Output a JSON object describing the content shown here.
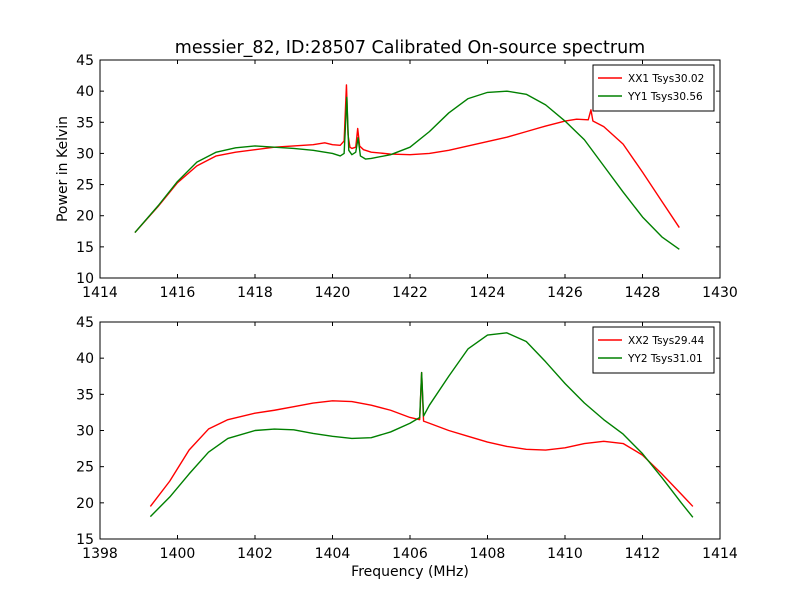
{
  "figure": {
    "title": "messier_82, ID:28507 Calibrated On-source spectrum",
    "ylabel": "Power in Kelvin",
    "xlabel": "Frequency (MHz)"
  },
  "colors": {
    "red": "#ff0000",
    "green": "#008000"
  },
  "chart_data": [
    {
      "type": "line",
      "xlim": [
        1414,
        1430
      ],
      "ylim": [
        10,
        45
      ],
      "xticks": [
        1414,
        1416,
        1418,
        1420,
        1422,
        1424,
        1426,
        1428,
        1430
      ],
      "yticks": [
        10,
        15,
        20,
        25,
        30,
        35,
        40,
        45
      ],
      "legend_placement": "top-right",
      "series": [
        {
          "name": "XX1 Tsys30.02",
          "color": "#ff0000",
          "x": [
            1414.9,
            1415.5,
            1416.0,
            1416.5,
            1417.0,
            1417.5,
            1418.0,
            1418.5,
            1419.0,
            1419.5,
            1419.8,
            1420.0,
            1420.2,
            1420.3,
            1420.36,
            1420.4,
            1420.45,
            1420.5,
            1420.6,
            1420.65,
            1420.7,
            1420.8,
            1421.0,
            1421.5,
            1422.0,
            1422.5,
            1423.0,
            1423.5,
            1424.0,
            1424.5,
            1425.0,
            1425.5,
            1426.0,
            1426.3,
            1426.6,
            1426.67,
            1426.72,
            1427.0,
            1427.5,
            1428.0,
            1428.5,
            1428.95
          ],
          "y": [
            17.3,
            21.5,
            25.3,
            28.0,
            29.6,
            30.2,
            30.6,
            31.0,
            31.2,
            31.4,
            31.7,
            31.4,
            31.3,
            32.0,
            41.0,
            33.0,
            31.0,
            30.8,
            31.0,
            34.0,
            31.2,
            30.6,
            30.2,
            29.9,
            29.8,
            30.0,
            30.5,
            31.2,
            31.9,
            32.6,
            33.5,
            34.4,
            35.2,
            35.5,
            35.4,
            37.0,
            35.2,
            34.3,
            31.5,
            27.0,
            22.3,
            18.1
          ]
        },
        {
          "name": "YY1 Tsys30.56",
          "color": "#008000",
          "x": [
            1414.9,
            1415.5,
            1416.0,
            1416.5,
            1417.0,
            1417.5,
            1418.0,
            1418.5,
            1419.0,
            1419.5,
            1420.0,
            1420.2,
            1420.3,
            1420.37,
            1420.42,
            1420.5,
            1420.6,
            1420.66,
            1420.72,
            1420.85,
            1421.0,
            1421.5,
            1422.0,
            1422.5,
            1423.0,
            1423.5,
            1424.0,
            1424.5,
            1425.0,
            1425.5,
            1426.0,
            1426.5,
            1427.0,
            1427.5,
            1428.0,
            1428.5,
            1428.95
          ],
          "y": [
            17.3,
            21.6,
            25.5,
            28.6,
            30.2,
            30.9,
            31.2,
            31.0,
            30.8,
            30.5,
            30.0,
            29.6,
            30.0,
            39.0,
            30.5,
            29.8,
            30.2,
            32.5,
            29.6,
            29.1,
            29.2,
            29.8,
            31.0,
            33.5,
            36.5,
            38.8,
            39.8,
            40.0,
            39.5,
            37.8,
            35.2,
            32.2,
            28.0,
            23.8,
            19.8,
            16.6,
            14.6
          ]
        }
      ]
    },
    {
      "type": "line",
      "xlim": [
        1398,
        1414
      ],
      "ylim": [
        15,
        45
      ],
      "xticks": [
        1398,
        1400,
        1402,
        1404,
        1406,
        1408,
        1410,
        1412,
        1414
      ],
      "yticks": [
        15,
        20,
        25,
        30,
        35,
        40,
        45
      ],
      "legend_placement": "top-right",
      "series": [
        {
          "name": "XX2 Tsys29.44",
          "color": "#ff0000",
          "x": [
            1399.3,
            1399.8,
            1400.3,
            1400.8,
            1401.3,
            1402.0,
            1402.5,
            1403.0,
            1403.5,
            1404.0,
            1404.5,
            1405.0,
            1405.5,
            1406.0,
            1406.25,
            1406.3,
            1406.35,
            1406.5,
            1407.0,
            1407.5,
            1408.0,
            1408.5,
            1409.0,
            1409.5,
            1410.0,
            1410.5,
            1411.0,
            1411.5,
            1412.0,
            1412.5,
            1413.0,
            1413.3
          ],
          "y": [
            19.5,
            23.0,
            27.3,
            30.2,
            31.5,
            32.4,
            32.8,
            33.3,
            33.8,
            34.1,
            34.0,
            33.5,
            32.8,
            31.8,
            31.5,
            38.0,
            31.3,
            31.0,
            30.0,
            29.2,
            28.4,
            27.8,
            27.4,
            27.3,
            27.6,
            28.2,
            28.5,
            28.2,
            26.6,
            24.0,
            21.2,
            19.5
          ]
        },
        {
          "name": "YY2 Tsys31.01",
          "color": "#008000",
          "x": [
            1399.3,
            1399.8,
            1400.3,
            1400.8,
            1401.3,
            1402.0,
            1402.5,
            1403.0,
            1403.5,
            1404.0,
            1404.5,
            1405.0,
            1405.5,
            1406.0,
            1406.25,
            1406.3,
            1406.35,
            1406.5,
            1407.0,
            1407.5,
            1408.0,
            1408.5,
            1409.0,
            1409.5,
            1410.0,
            1410.5,
            1411.0,
            1411.5,
            1412.0,
            1412.5,
            1413.0,
            1413.3
          ],
          "y": [
            18.1,
            20.8,
            24.0,
            27.0,
            28.9,
            30.0,
            30.2,
            30.1,
            29.6,
            29.2,
            28.9,
            29.0,
            29.8,
            31.0,
            31.8,
            38.0,
            32.0,
            33.5,
            37.5,
            41.3,
            43.2,
            43.5,
            42.3,
            39.5,
            36.5,
            33.8,
            31.5,
            29.5,
            26.8,
            23.5,
            20.0,
            18.0
          ]
        }
      ]
    }
  ]
}
